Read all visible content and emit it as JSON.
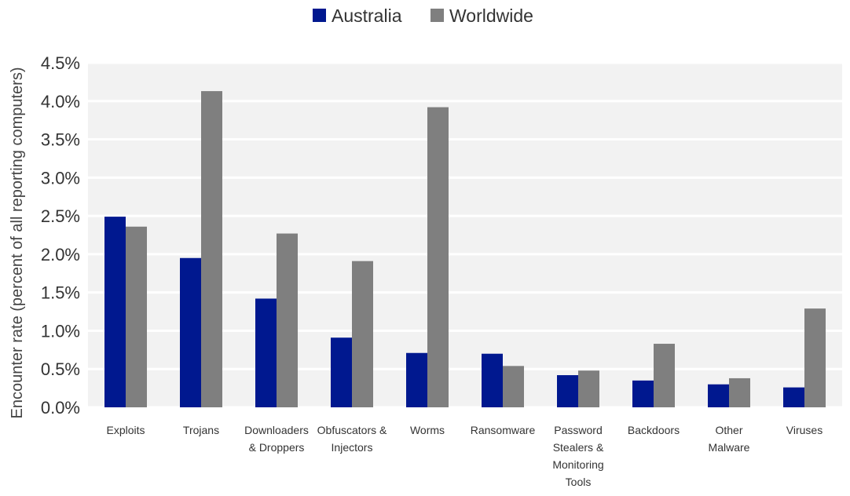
{
  "chart_data": {
    "type": "bar",
    "ylabel": "Encounter rate (percent of all reporting computers)",
    "xlabel": "",
    "ylim": [
      0,
      4.5
    ],
    "yticks": [
      "0.0%",
      "0.5%",
      "1.0%",
      "1.5%",
      "2.0%",
      "2.5%",
      "3.0%",
      "3.5%",
      "4.0%",
      "4.5%"
    ],
    "ytick_values": [
      0,
      0.5,
      1.0,
      1.5,
      2.0,
      2.5,
      3.0,
      3.5,
      4.0,
      4.5
    ],
    "grid": true,
    "legend_position": "top-center",
    "categories": [
      [
        "Exploits"
      ],
      [
        "Trojans"
      ],
      [
        "Downloaders",
        "& Droppers"
      ],
      [
        "Obfuscators &",
        "Injectors"
      ],
      [
        "Worms"
      ],
      [
        "Ransomware"
      ],
      [
        "Password",
        "Stealers &",
        "Monitoring",
        "Tools"
      ],
      [
        "Backdoors"
      ],
      [
        "Other",
        "Malware"
      ],
      [
        "Viruses"
      ]
    ],
    "series": [
      {
        "name": "Australia",
        "color": "#00188f",
        "values": [
          2.49,
          1.95,
          1.42,
          0.91,
          0.71,
          0.7,
          0.42,
          0.35,
          0.3,
          0.26
        ]
      },
      {
        "name": "Worldwide",
        "color": "#7f7f7f",
        "values": [
          2.36,
          4.13,
          2.27,
          1.91,
          3.92,
          0.54,
          0.48,
          0.83,
          0.38,
          1.29
        ]
      }
    ],
    "plot_background": "#f2f2f2",
    "gridline_color": "#ffffff"
  }
}
